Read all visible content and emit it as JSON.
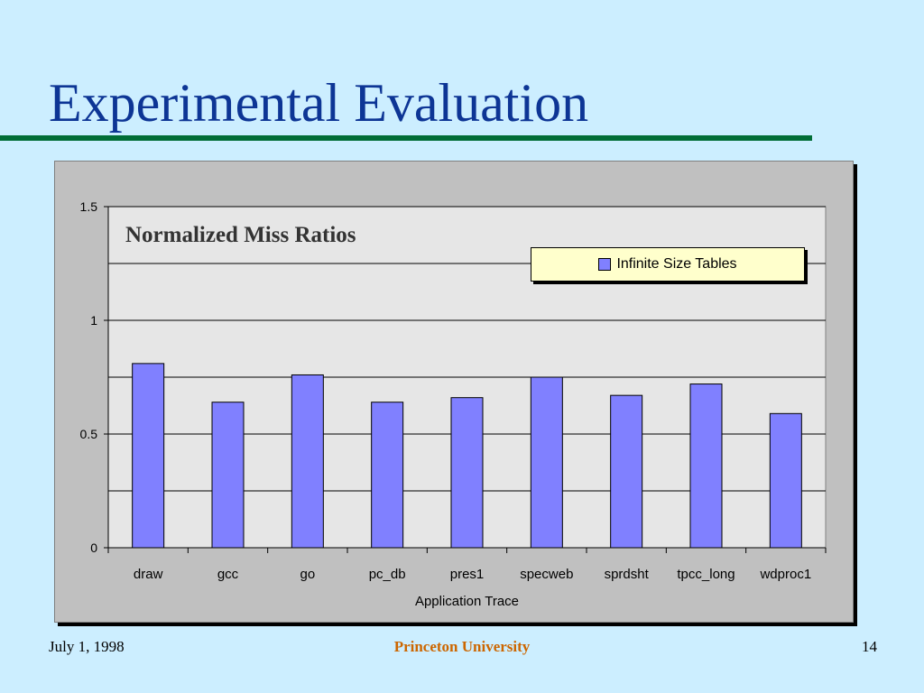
{
  "slide": {
    "title": "Experimental Evaluation",
    "footer_date": "July 1, 1998",
    "footer_org": "Princeton University",
    "page_number": "14"
  },
  "colors": {
    "background": "#cceeff",
    "title": "#0d3595",
    "rule": "#006d36",
    "bar": "#8080ff",
    "org": "#cc6600",
    "legend_bg": "#ffffcc"
  },
  "chart_data": {
    "type": "bar",
    "title": "Normalized Miss Ratios",
    "xlabel": "Application Trace",
    "ylabel": "",
    "categories": [
      "draw",
      "gcc",
      "go",
      "pc_db",
      "pres1",
      "specweb",
      "sprdsht",
      "tpcc_long",
      "wdproc1"
    ],
    "series": [
      {
        "name": "Infinite Size Tables",
        "values": [
          0.81,
          0.64,
          0.76,
          0.64,
          0.66,
          0.75,
          0.67,
          0.72,
          0.59
        ]
      }
    ],
    "ylim": [
      0,
      1.5
    ],
    "yticks": [
      0,
      0.5,
      1,
      1.5
    ],
    "ytick_labels": [
      "0",
      "0.5",
      "1",
      "1.5"
    ],
    "minor_gridlines": [
      0.25,
      0.75,
      1.25
    ],
    "grid": true,
    "legend_position": "top-right"
  }
}
